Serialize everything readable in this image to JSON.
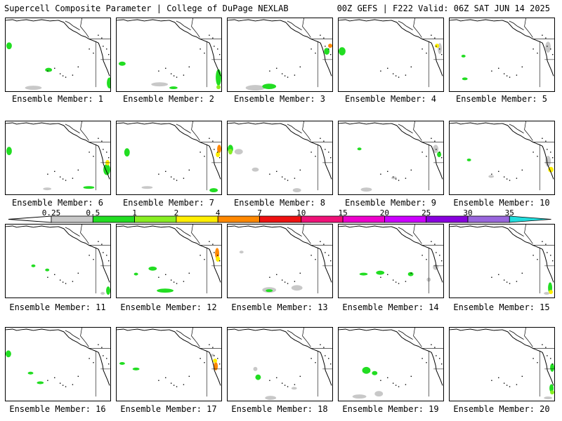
{
  "header": {
    "left": "Supercell Composite Parameter | College of DuPage NEXLAB",
    "right": "00Z GEFS | F222 Valid: 06Z SAT JUN 14 2025"
  },
  "colorbar": {
    "labels": [
      "0.25",
      "0.5",
      "1",
      "2",
      "4",
      "7",
      "10",
      "15",
      "20",
      "25",
      "30",
      "35"
    ],
    "colors": [
      "#c8c8c8",
      "#22dd22",
      "#88ee22",
      "#ffee00",
      "#ff8800",
      "#ee1111",
      "#ee1177",
      "#ee00cc",
      "#cc00ff",
      "#8800dd",
      "#9966dd",
      "#22dddd"
    ]
  },
  "panels": [
    {
      "label": "Ensemble Member: 1"
    },
    {
      "label": "Ensemble Member: 2"
    },
    {
      "label": "Ensemble Member: 3"
    },
    {
      "label": "Ensemble Member: 4"
    },
    {
      "label": "Ensemble Member: 5"
    },
    {
      "label": "Ensemble Member: 6"
    },
    {
      "label": "Ensemble Member: 7"
    },
    {
      "label": "Ensemble Member: 8"
    },
    {
      "label": "Ensemble Member: 9"
    },
    {
      "label": "Ensemble Member: 10"
    },
    {
      "label": "Ensemble Member: 11"
    },
    {
      "label": "Ensemble Member: 12"
    },
    {
      "label": "Ensemble Member: 13"
    },
    {
      "label": "Ensemble Member: 14"
    },
    {
      "label": "Ensemble Member: 15"
    },
    {
      "label": "Ensemble Member: 16"
    },
    {
      "label": "Ensemble Member: 17"
    },
    {
      "label": "Ensemble Member: 18"
    },
    {
      "label": "Ensemble Member: 19"
    },
    {
      "label": "Ensemble Member: 20"
    }
  ]
}
